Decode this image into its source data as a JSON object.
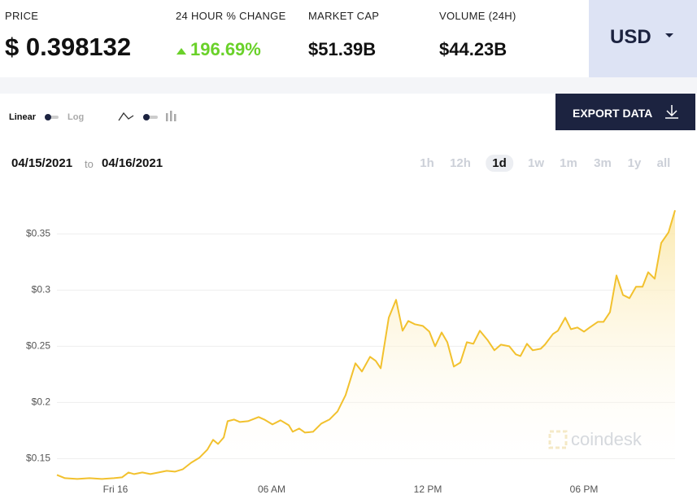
{
  "header": {
    "price_label": "PRICE",
    "price": "$ 0.398132",
    "change_label": "24 HOUR % CHANGE",
    "change": "196.69%",
    "mcap_label": "MARKET CAP",
    "mcap": "$51.39B",
    "volume_label": "VOLUME (24H)",
    "volume": "$44.23B",
    "currency": "USD"
  },
  "controls": {
    "linear": "Linear",
    "log": "Log",
    "export": "EXPORT DATA",
    "date_from": "04/15/2021",
    "date_sep": "to",
    "date_to": "04/16/2021",
    "ranges": [
      "1h",
      "12h",
      "1d",
      "1w",
      "1m",
      "3m",
      "1y",
      "all"
    ],
    "selected_range": "1d"
  },
  "chart_data": {
    "type": "line",
    "color": "#f2c12e",
    "watermark": "coindesk",
    "grid": true,
    "x": [
      -2.25,
      -1.94,
      -1.47,
      -1.0,
      -0.53,
      -0.06,
      0.25,
      0.5,
      0.72,
      1.03,
      1.34,
      1.66,
      1.97,
      2.28,
      2.59,
      2.91,
      3.22,
      3.53,
      3.75,
      3.94,
      4.16,
      4.31,
      4.56,
      4.78,
      5.09,
      5.5,
      5.72,
      6.03,
      6.34,
      6.66,
      6.81,
      7.06,
      7.28,
      7.59,
      7.91,
      8.22,
      8.53,
      8.84,
      9.22,
      9.47,
      9.78,
      10.0,
      10.19,
      10.5,
      10.78,
      11.03,
      11.25,
      11.5,
      11.81,
      12.06,
      12.28,
      12.53,
      12.75,
      13.0,
      13.25,
      13.5,
      13.75,
      14.0,
      14.31,
      14.56,
      14.81,
      15.13,
      15.38,
      15.56,
      15.81,
      16.03,
      16.34,
      16.5,
      16.81,
      17.0,
      17.28,
      17.5,
      17.75,
      18.0,
      18.22,
      18.53,
      18.75,
      19.0,
      19.25,
      19.5,
      19.75,
      20.0,
      20.25,
      20.47,
      20.72,
      20.97,
      21.25,
      21.5
    ],
    "values": [
      0.1355,
      0.1326,
      0.1319,
      0.1326,
      0.1319,
      0.1326,
      0.1333,
      0.1377,
      0.1362,
      0.1377,
      0.1362,
      0.1377,
      0.1391,
      0.1384,
      0.1406,
      0.1464,
      0.1507,
      0.158,
      0.1667,
      0.163,
      0.1688,
      0.1833,
      0.1848,
      0.1826,
      0.1833,
      0.187,
      0.1848,
      0.1804,
      0.1841,
      0.1797,
      0.1739,
      0.1768,
      0.1732,
      0.1739,
      0.1812,
      0.1848,
      0.192,
      0.2065,
      0.2348,
      0.2275,
      0.2406,
      0.237,
      0.2304,
      0.2754,
      0.2913,
      0.2638,
      0.2725,
      0.2696,
      0.2681,
      0.263,
      0.25,
      0.2623,
      0.2536,
      0.2319,
      0.2355,
      0.2536,
      0.2522,
      0.2638,
      0.2551,
      0.2464,
      0.2514,
      0.25,
      0.2428,
      0.2413,
      0.2522,
      0.2464,
      0.2478,
      0.2514,
      0.2609,
      0.2638,
      0.2754,
      0.2652,
      0.2667,
      0.263,
      0.2667,
      0.2717,
      0.2717,
      0.2804,
      0.313,
      0.2957,
      0.2928,
      0.3029,
      0.3029,
      0.3159,
      0.3101,
      0.342,
      0.3514,
      0.371
    ],
    "xlim": [
      -2.25,
      21.5
    ],
    "xticks": [
      {
        "value": 0,
        "label": "Fri 16"
      },
      {
        "value": 6,
        "label": "06 AM"
      },
      {
        "value": 12,
        "label": "12 PM"
      },
      {
        "value": 18,
        "label": "06 PM"
      }
    ],
    "ylim": [
      0.13,
      0.385
    ],
    "yticks": [
      {
        "value": 0.15,
        "label": "$0.15"
      },
      {
        "value": 0.2,
        "label": "$0.2"
      },
      {
        "value": 0.25,
        "label": "$0.25"
      },
      {
        "value": 0.3,
        "label": "$0.3"
      },
      {
        "value": 0.35,
        "label": "$0.35"
      }
    ]
  }
}
